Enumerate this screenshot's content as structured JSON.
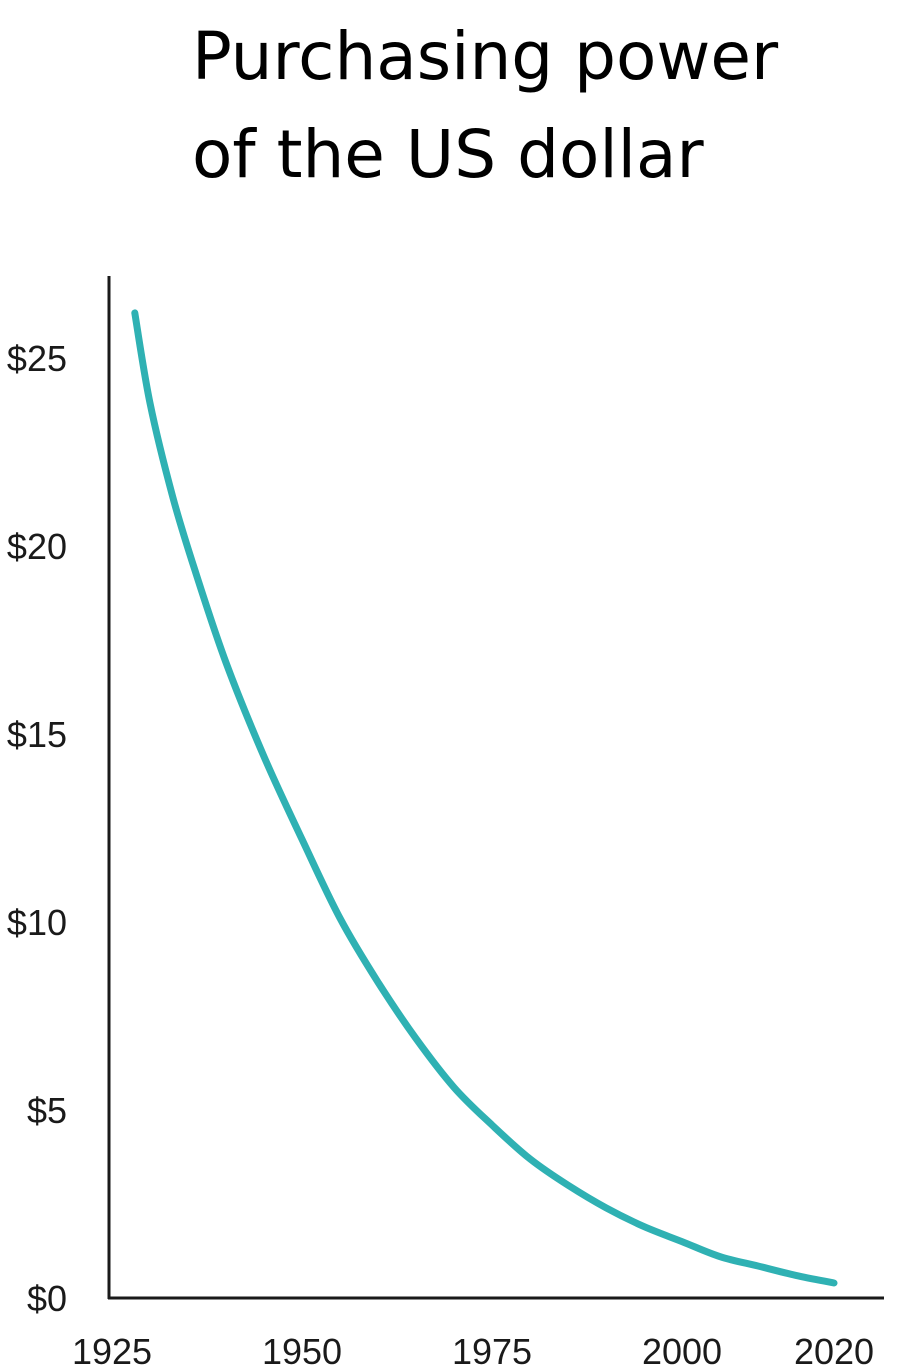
{
  "chart_data": {
    "type": "line",
    "title_lines": [
      "Purchasing power",
      "of the US dollar"
    ],
    "xlabel": "",
    "ylabel": "",
    "xlim": [
      1925,
      2020
    ],
    "ylim": [
      0,
      27
    ],
    "x_ticks": [
      1925,
      1950,
      1975,
      2000,
      2020
    ],
    "x_tick_labels": [
      "1925",
      "1950",
      "1975",
      "2000",
      "2020"
    ],
    "y_ticks": [
      0,
      5,
      10,
      15,
      20,
      25
    ],
    "y_tick_labels": [
      "$0",
      "$5",
      "$10",
      "$15",
      "$20",
      "$25"
    ],
    "grid": false,
    "series": [
      {
        "color": "#2fb1b3",
        "x": [
          1928,
          1930,
          1933,
          1936,
          1940,
          1945,
          1950,
          1955,
          1960,
          1965,
          1970,
          1975,
          1980,
          1985,
          1990,
          1995,
          2000,
          2005,
          2010,
          2015,
          2020
        ],
        "y": [
          26.2,
          23.8,
          21.3,
          19.3,
          16.9,
          14.4,
          12.2,
          10.1,
          8.4,
          6.9,
          5.6,
          4.6,
          3.7,
          3.0,
          2.4,
          1.9,
          1.5,
          1.1,
          0.85,
          0.6,
          0.4
        ]
      }
    ],
    "axis_color": "#1a1a1a"
  }
}
